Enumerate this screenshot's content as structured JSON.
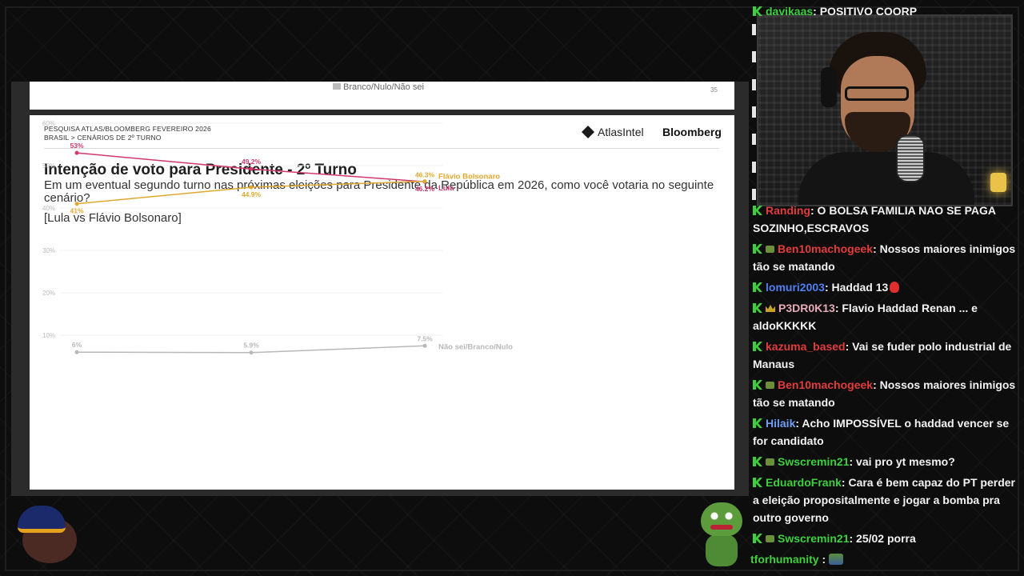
{
  "prev_slide": {
    "legend_label": "Branco/Nulo/Não sei",
    "page_number": "35"
  },
  "slide": {
    "header_line1": "PESQUISA ATLAS/BLOOMBERG FEVEREIRO 2026",
    "header_line2": "BRASIL > CENÁRIOS DE 2º TURNO",
    "brand_atlas": "AtlasIntel",
    "brand_bloomberg": "Bloomberg",
    "title": "Intenção de voto para Presidente - 2º Turno",
    "question": "Em um eventual segundo turno nas próximas eleições para Presidente da República em 2026, como você votaria no seguinte cenário?",
    "scenario": "[Lula vs Flávio Bolsonaro]"
  },
  "chart_data": {
    "type": "line",
    "x": [
      "1",
      "2",
      "3"
    ],
    "ylim": [
      0,
      60
    ],
    "yticks": [
      "60%",
      "50%",
      "40%",
      "30%",
      "20%",
      "10%"
    ],
    "ytick_values": [
      60,
      50,
      40,
      30,
      20,
      10
    ],
    "grid": true,
    "series": [
      {
        "name": "Lula",
        "values": [
          53,
          49.2,
          46.2
        ],
        "labels": [
          "53%",
          "49.2%",
          "46.2%"
        ],
        "color": "#d2386a"
      },
      {
        "name": "Flávio Bolsonaro",
        "values": [
          41,
          44.9,
          46.3
        ],
        "labels": [
          "41%",
          "44.9%",
          "46.3%"
        ],
        "color": "#e0a82e"
      },
      {
        "name": "Não sei/Branco/Nulo",
        "values": [
          6,
          5.9,
          7.5
        ],
        "labels": [
          "6%",
          "5.9%",
          "7.5%"
        ],
        "color": "#b8b8b8"
      }
    ]
  },
  "chat": {
    "top_user": "davikaas",
    "top_text": ": POSITIVO COORP",
    "messages": [
      {
        "user": "Randing",
        "color": "#e23c3c",
        "badge": "none",
        "text": ": O BOLSA FAMILIA NAO SE PAGA SOZINHO,ESCRAVOS",
        "emote": ""
      },
      {
        "user": "Ben10machogeek",
        "color": "#e23c3c",
        "badge": "sub",
        "text": ": Nossos maiores inimigos tão se matando",
        "emote": ""
      },
      {
        "user": "lomuri2003",
        "color": "#4f7ff0",
        "badge": "none",
        "text": ": Haddad 13",
        "emote": "red"
      },
      {
        "user": "P3DR0K13",
        "color": "#e8a9b8",
        "badge": "crown",
        "text": ": Flavio Haddad Renan ... e aldoKKKKK",
        "emote": ""
      },
      {
        "user": "kazuma_based",
        "color": "#e23c3c",
        "badge": "none",
        "text": ": Vai se fuder polo industrial de Manaus",
        "emote": ""
      },
      {
        "user": "Ben10machogeek",
        "color": "#e23c3c",
        "badge": "sub",
        "text": ": Nossos maiores inimigos tão se matando",
        "emote": ""
      },
      {
        "user": "Hilaik",
        "color": "#6f9ef5",
        "badge": "none",
        "text": ": Acho IMPOSSÍVEL o haddad vencer se for candidato",
        "emote": ""
      },
      {
        "user": "Swscremin21",
        "color": "#3ecf3e",
        "badge": "sub",
        "text": ": vai pro yt mesmo?",
        "emote": ""
      },
      {
        "user": "EduardoFrank",
        "color": "#3ecf3e",
        "badge": "none",
        "text": ": Cara é bem capaz do PT perder a eleição propositalmente e jogar a bomba pra outro governo",
        "emote": ""
      },
      {
        "user": "Swscremin21",
        "color": "#3ecf3e",
        "badge": "sub",
        "text": ": 25/02 porra",
        "emote": ""
      }
    ],
    "bottom_user": "tforhumanity",
    "bottom_text": " :",
    "icons": {
      "mod": "k-mod-icon",
      "sub": "sub-badge-icon",
      "crown": "crown-badge-icon"
    }
  }
}
